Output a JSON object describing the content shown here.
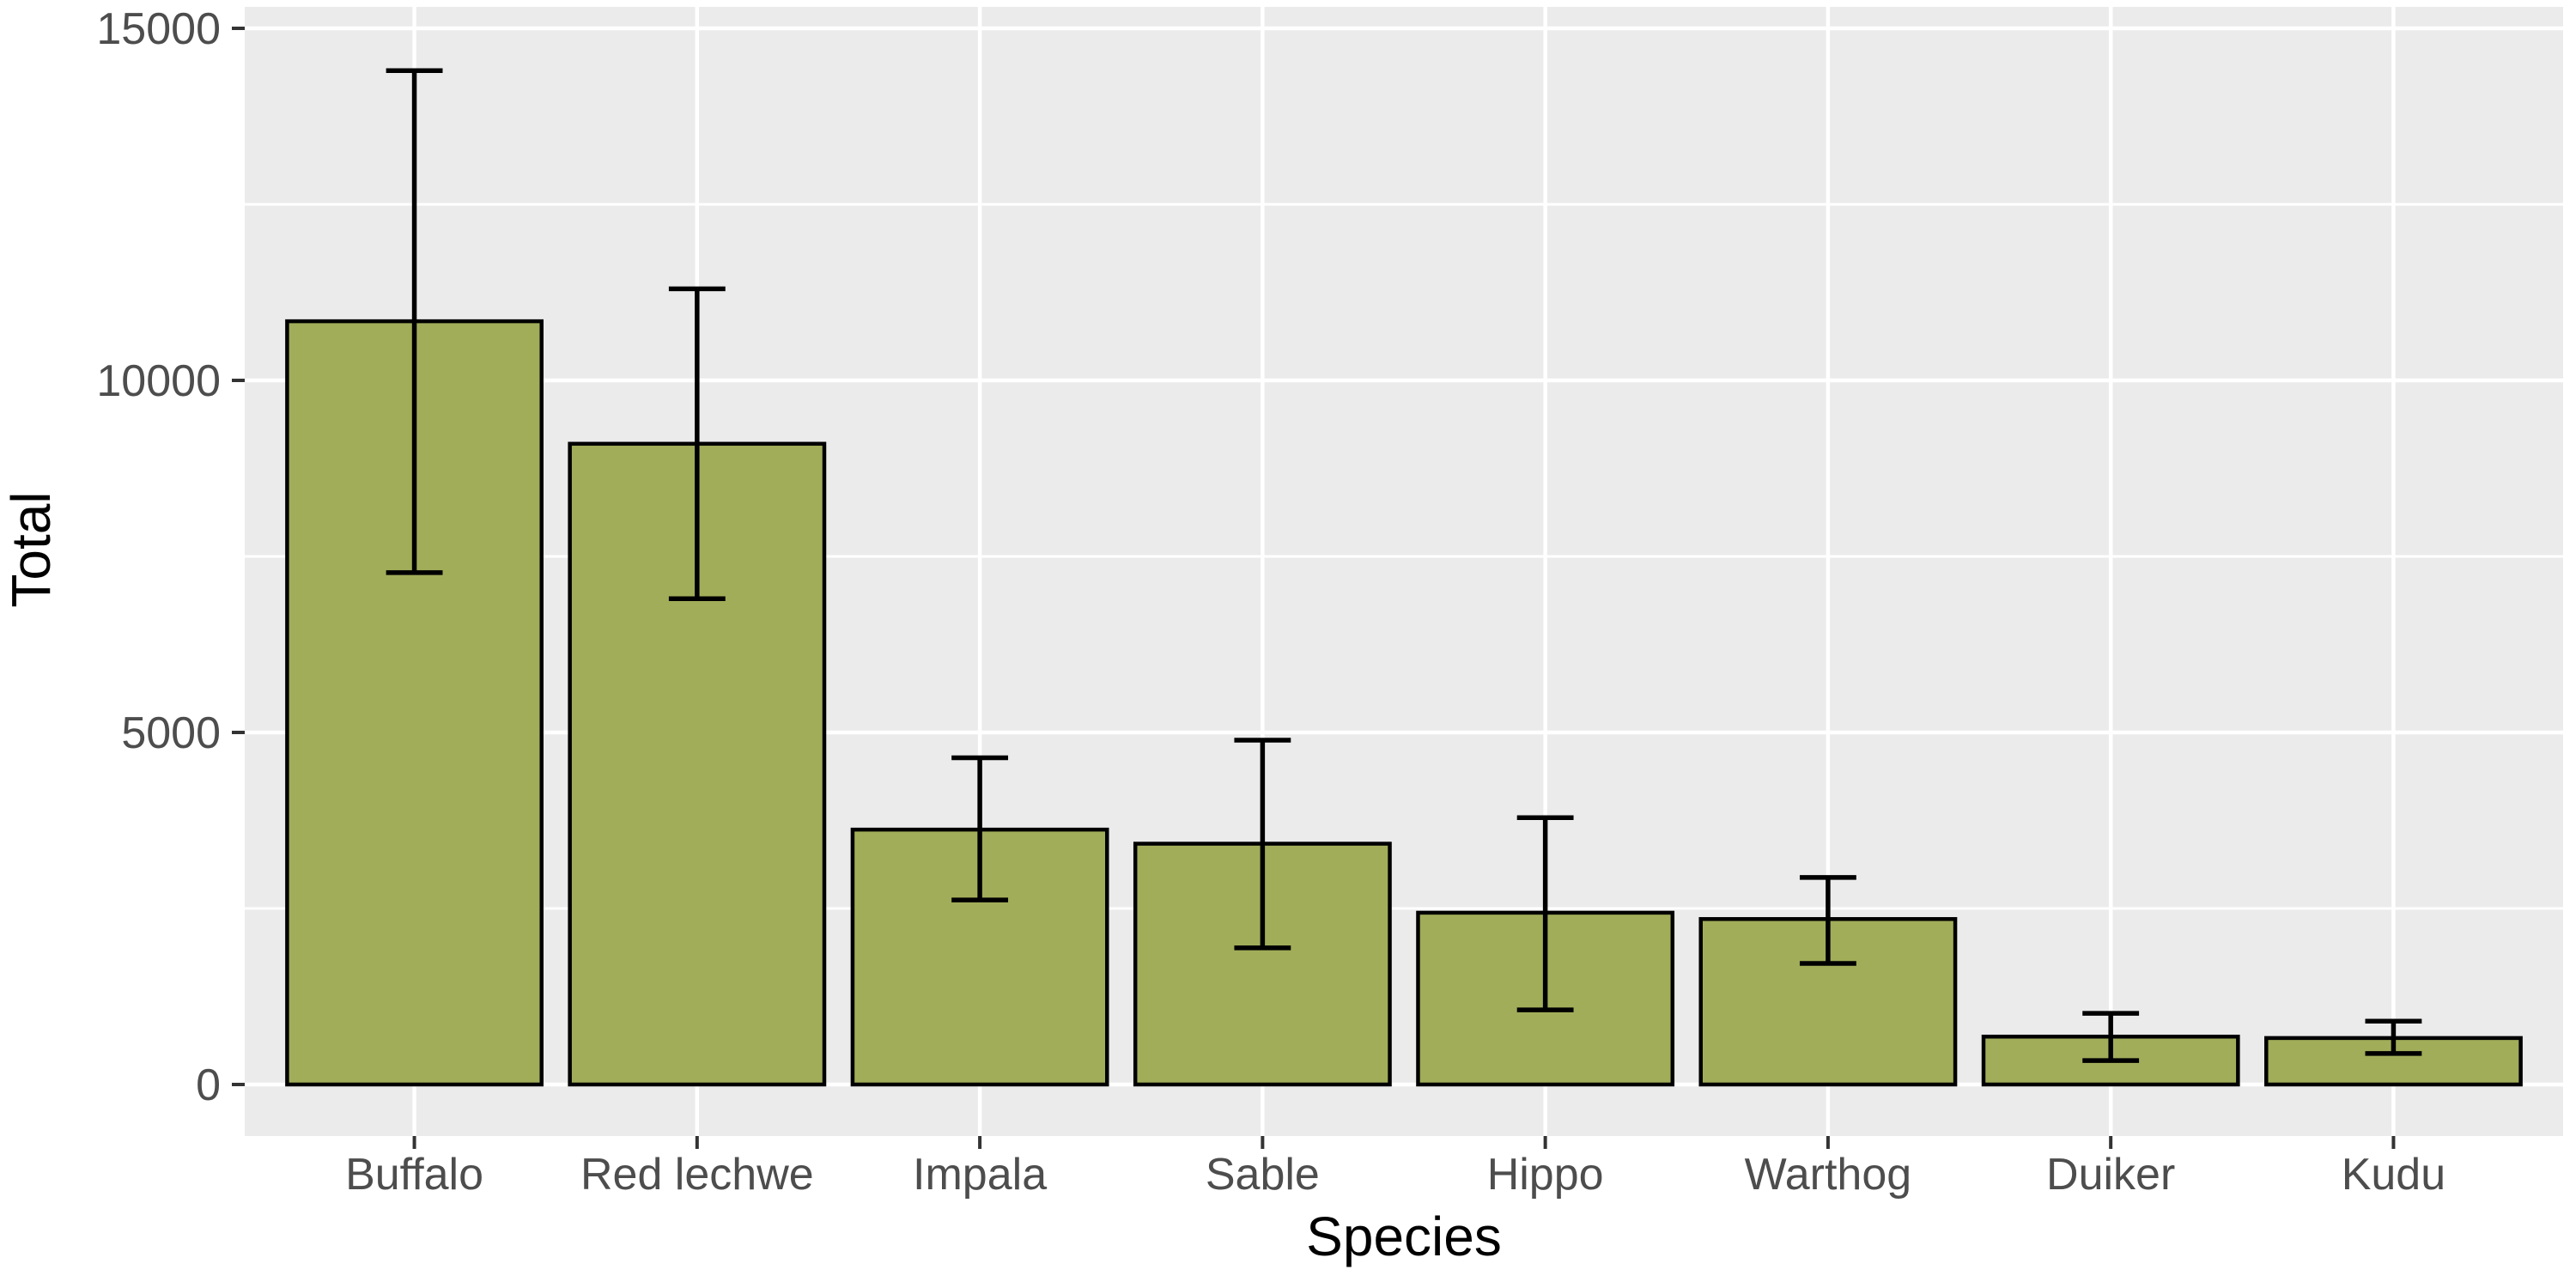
{
  "chart_data": {
    "type": "bar",
    "title": "",
    "xlabel": "Species",
    "ylabel": "Total",
    "categories": [
      "Buffalo",
      "Red lechwe",
      "Impala",
      "Sable",
      "Hippo",
      "Warthog",
      "Duiker",
      "Kudu"
    ],
    "values": [
      10840,
      9100,
      3620,
      3420,
      2440,
      2350,
      680,
      660
    ],
    "error_low": [
      7270,
      6900,
      2620,
      1940,
      1060,
      1720,
      340,
      440
    ],
    "error_high": [
      14400,
      11300,
      4640,
      4890,
      3790,
      2940,
      1010,
      900
    ],
    "ylim": [
      0,
      15000
    ],
    "yticks_major": [
      0,
      5000,
      10000,
      15000
    ],
    "y_tick_labels": [
      "0",
      "5000",
      "10000",
      "15000"
    ],
    "yticks_minor": [
      2500,
      7500,
      12500
    ],
    "grid": "on",
    "legend": "none",
    "bar_width_fraction": 0.9,
    "errorbar_cap_fraction": 0.2,
    "colors": {
      "bar_fill": "#A2AD59",
      "bar_stroke": "#000000",
      "errorbar": "#000000",
      "panel_background": "#EBEBEB",
      "gridline_major": "#FFFFFF",
      "gridline_minor": "#FFFFFF",
      "tick_label": "#4D4D4D",
      "axis_title": "#000000",
      "tick_mark": "#333333",
      "page_background": "#FFFFFF"
    }
  }
}
